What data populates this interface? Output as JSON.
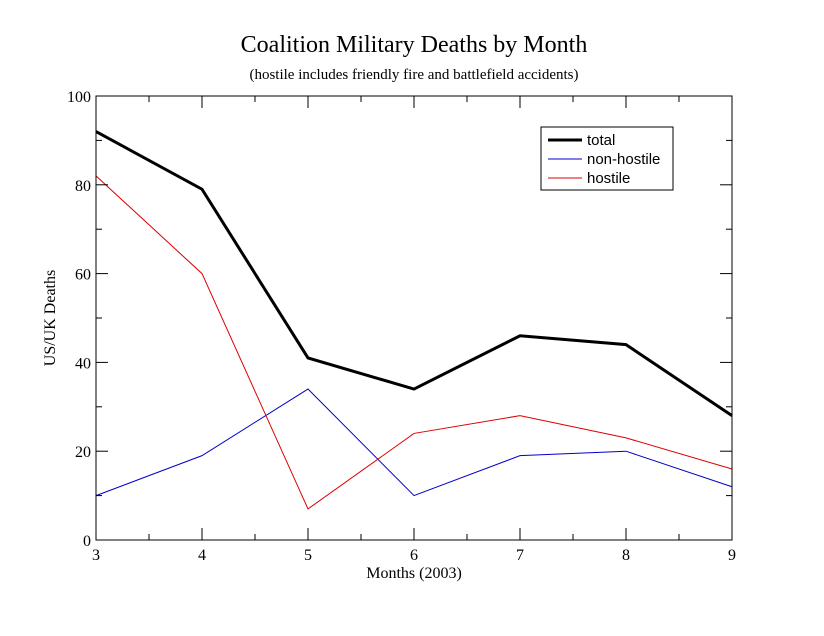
{
  "chart_data": {
    "type": "line",
    "title": "Coalition Military Deaths by Month",
    "subtitle": "(hostile includes friendly fire and battlefield accidents)",
    "xlabel": "Months (2003)",
    "ylabel": "US/UK Deaths",
    "x": [
      3,
      4,
      5,
      6,
      7,
      8,
      9
    ],
    "xlim": [
      3,
      9
    ],
    "ylim": [
      0,
      100
    ],
    "xticks": [
      "3",
      "4",
      "5",
      "6",
      "7",
      "8",
      "9"
    ],
    "yticks": [
      "0",
      "20",
      "40",
      "60",
      "80",
      "100"
    ],
    "grid": false,
    "legend_position": "top-right",
    "series": [
      {
        "name": "total",
        "color": "#000000",
        "width": "thick",
        "values": [
          92,
          79,
          41,
          34,
          46,
          44,
          28
        ]
      },
      {
        "name": "non-hostile",
        "color": "#0000cc",
        "width": "thin",
        "values": [
          10,
          19,
          34,
          10,
          19,
          20,
          12
        ]
      },
      {
        "name": "hostile",
        "color": "#dd0000",
        "width": "thin",
        "values": [
          82,
          60,
          7,
          24,
          28,
          23,
          16
        ]
      }
    ]
  }
}
